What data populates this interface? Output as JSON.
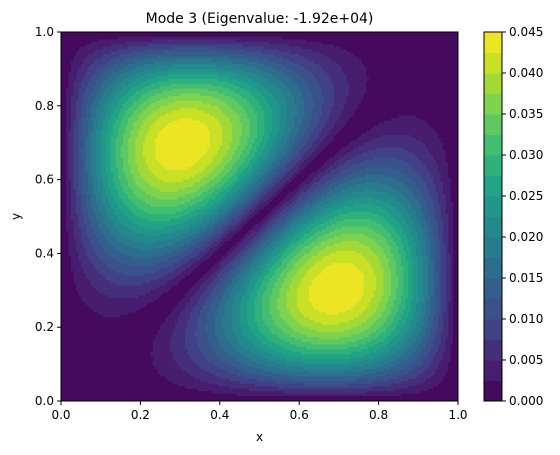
{
  "chart_data": {
    "type": "heatmap",
    "subtype": "filled-contour",
    "title": "Mode 3 (Eigenvalue: -1.92e+04)",
    "xlabel": "x",
    "ylabel": "y",
    "xlim": [
      0,
      1
    ],
    "ylim": [
      0,
      1
    ],
    "xticks": [
      "0.0",
      "0.2",
      "0.4",
      "0.6",
      "0.8",
      "1.0"
    ],
    "yticks": [
      "0.0",
      "0.2",
      "0.4",
      "0.6",
      "0.8",
      "1.0"
    ],
    "colormap": "viridis",
    "grid": false,
    "colorbar": {
      "min": 0.0,
      "max": 0.045,
      "levels": 18,
      "ticks": [
        "0.000",
        "0.005",
        "0.010",
        "0.015",
        "0.020",
        "0.025",
        "0.030",
        "0.035",
        "0.040",
        "0.045"
      ]
    },
    "peaks": [
      {
        "x": 0.29,
        "y": 0.7,
        "value": 0.045
      },
      {
        "x": 0.71,
        "y": 0.3,
        "value": 0.045
      }
    ],
    "nodal_line": "y = 1 - x"
  }
}
